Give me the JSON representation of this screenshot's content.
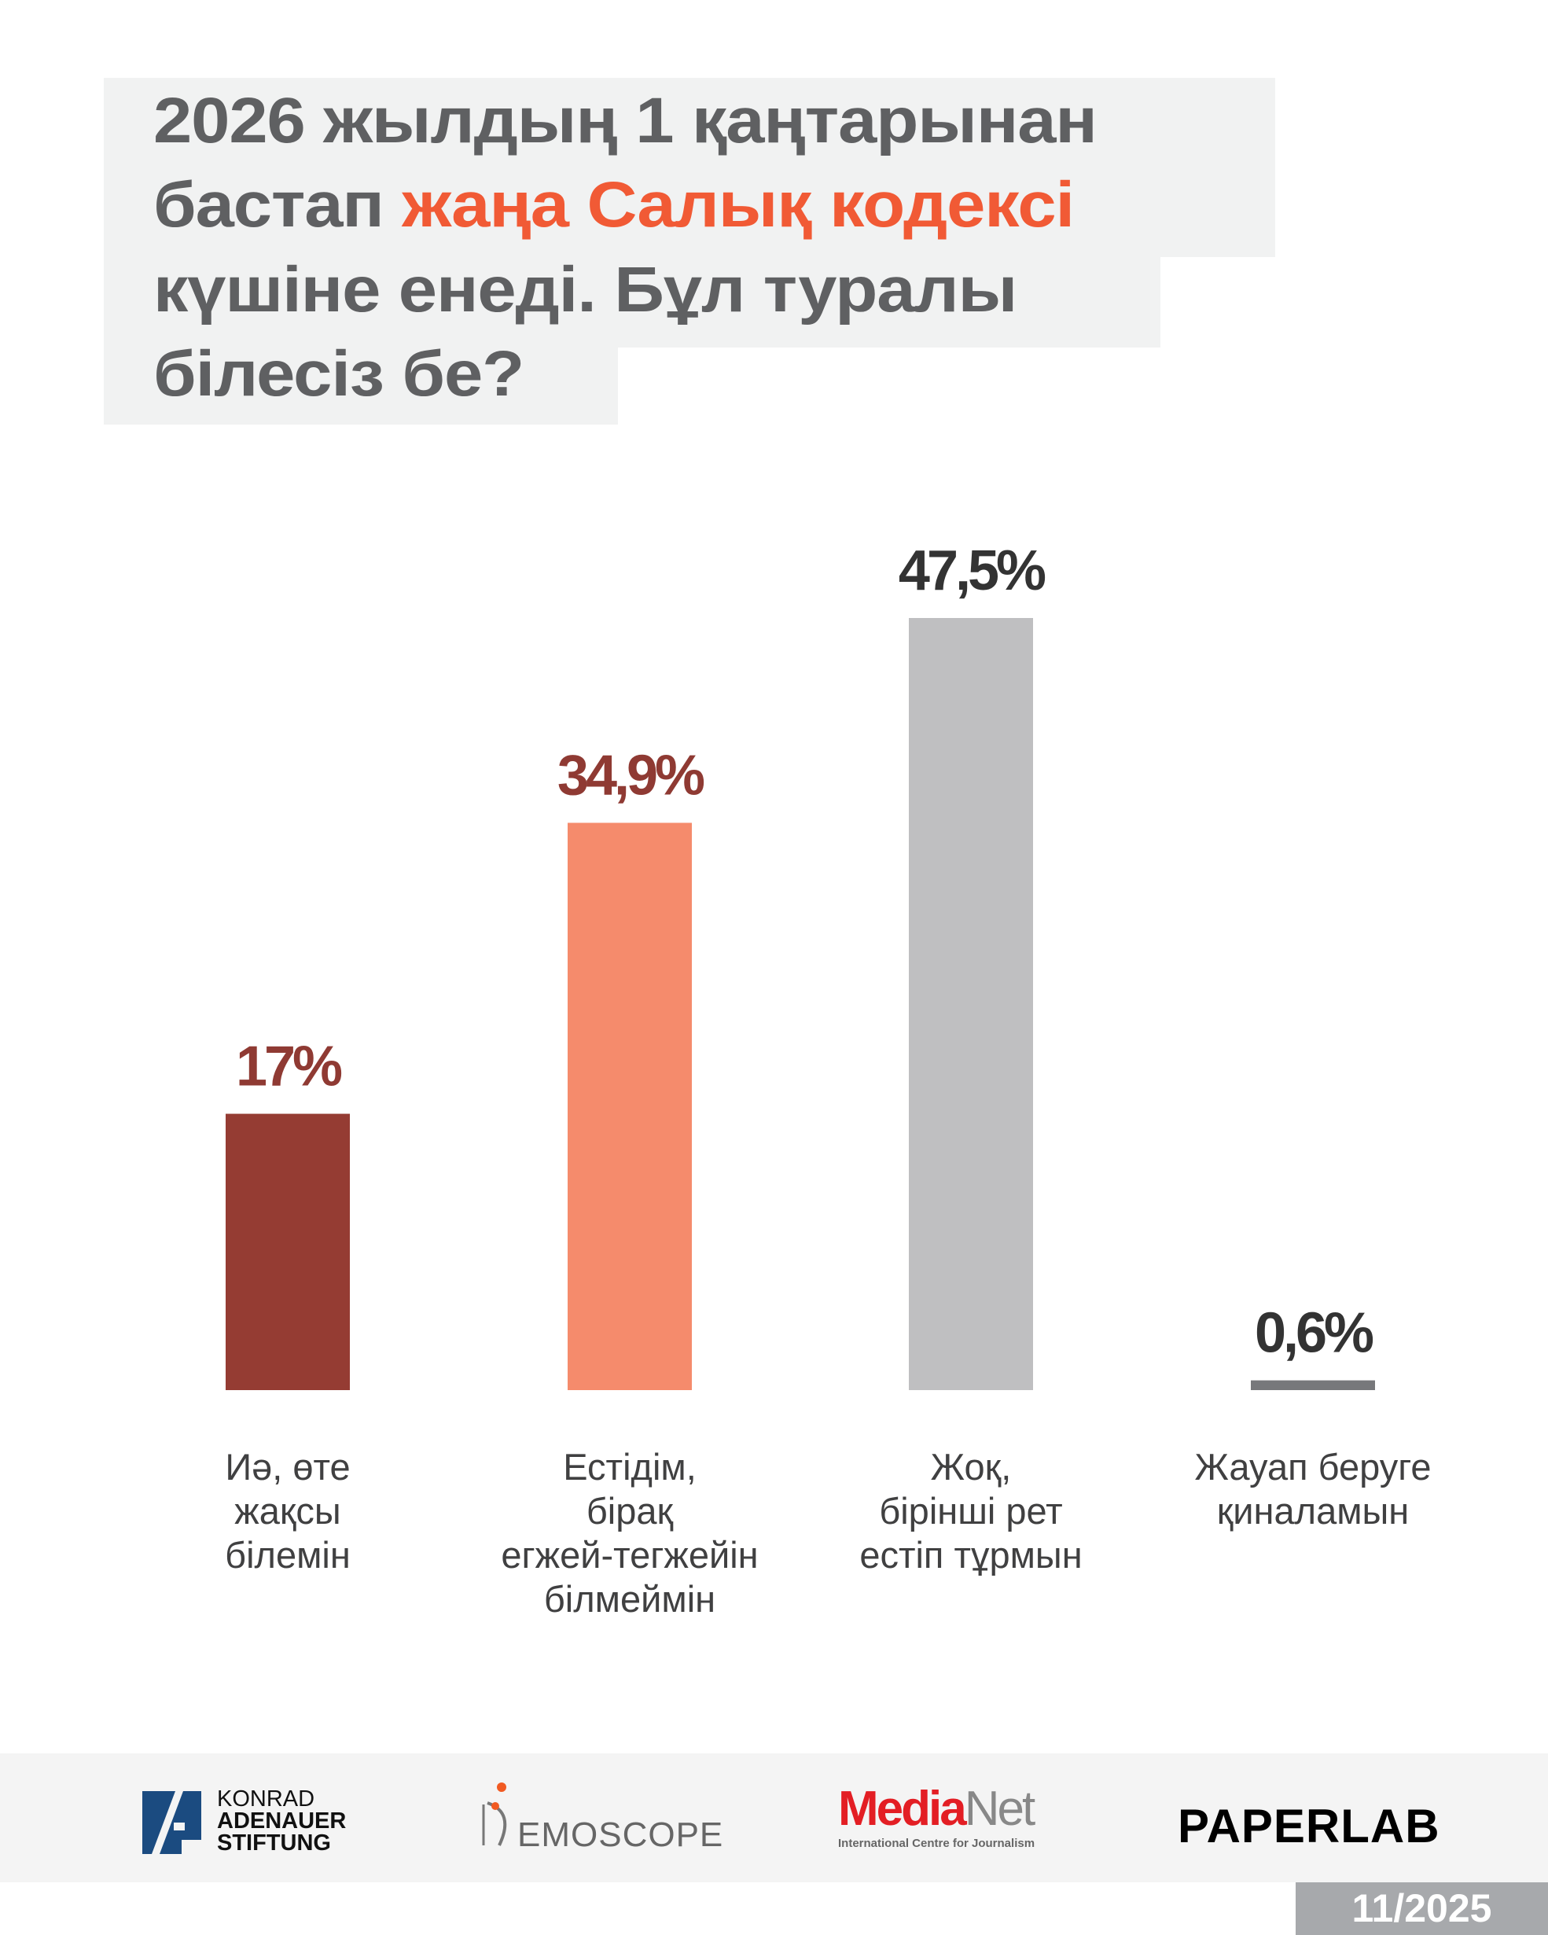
{
  "title": {
    "line1": "2026 жылдың 1 қаңтарынан",
    "line2_pre": "бастап ",
    "line2_accent": "жаңа Салық кодексі",
    "line3": "күшіне енеді. Бұл туралы",
    "line4": "білесіз бе?"
  },
  "colors": {
    "title": "#5f6062",
    "accent": "#f15a35"
  },
  "chart_data": {
    "type": "bar",
    "title": "2026 жылдың 1 қаңтарынан бастап жаңа Салық кодексі күшіне енеді. Бұл туралы білесіз бе?",
    "categories": [
      [
        "Иә, өте",
        "жақсы",
        "білемін"
      ],
      [
        "Естідім,",
        "бірақ",
        "егжей-тегжейін",
        "білмеймін"
      ],
      [
        "Жоқ,",
        "бірінші рет",
        "естіп тұрмын"
      ],
      [
        "Жауап беруге",
        "қиналамын"
      ]
    ],
    "values": [
      17,
      34.9,
      47.5,
      0.6
    ],
    "value_labels": [
      "17%",
      "34,9%",
      "47,5%",
      "0,6%"
    ],
    "bar_colors": [
      "#953c33",
      "#f58b6c",
      "#bfbfc1",
      "#77787b"
    ],
    "label_colors": [
      "#8f3a33",
      "#8f3a33",
      "#333333",
      "#333333"
    ],
    "unit": "%",
    "ylim": [
      0,
      50
    ],
    "grid": false,
    "xlabel": "",
    "ylabel": ""
  },
  "footer": {
    "logos": {
      "kas": [
        "KONRAD",
        "ADENAUER",
        "STIFTUNG"
      ],
      "demoscope": "EMOSCOPE",
      "medianet_red": "Media",
      "medianet_gray": "Net",
      "medianet_sub": "International Centre for Journalism",
      "paperlab": "PAPERLAB"
    },
    "date": "11/2025"
  }
}
